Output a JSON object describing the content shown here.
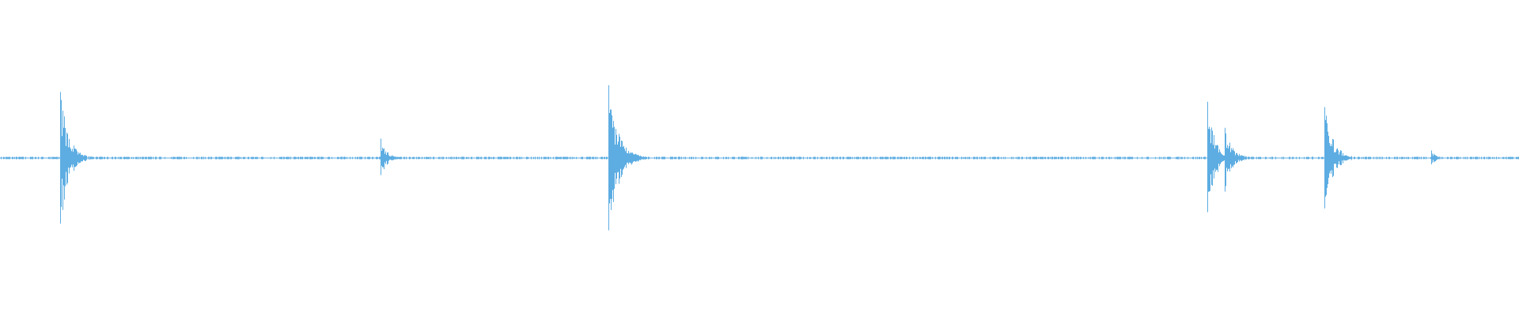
{
  "chart_data": {
    "type": "waveform",
    "amplitude_range": [
      -1,
      1
    ],
    "color": "#5DADE2",
    "background": "#FFFFFF",
    "grid": false,
    "peaks": [
      {
        "peak_amplitude": 0.48
      },
      {
        "peak_amplitude": 0.13
      },
      {
        "peak_amplitude": 0.53
      },
      {
        "peak_amplitude": 0.38
      },
      {
        "peak_amplitude": 0.23
      },
      {
        "peak_amplitude": 0.39
      },
      {
        "peak_amplitude": 0.05
      }
    ]
  }
}
